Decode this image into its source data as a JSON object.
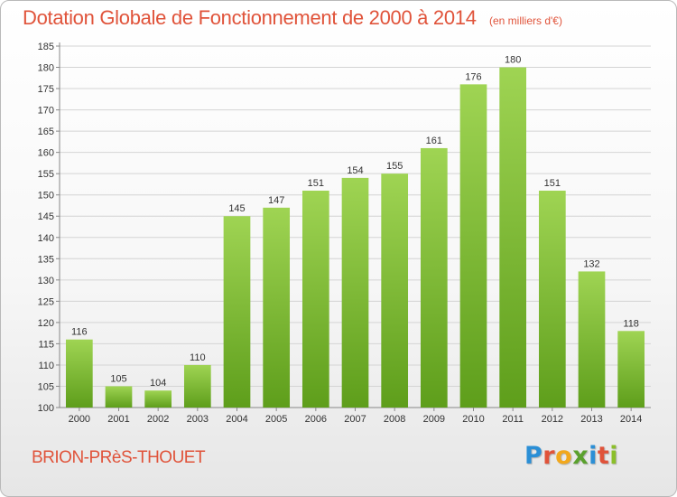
{
  "header": {
    "title": "Dotation Globale de Fonctionnement de 2000 à 2014",
    "unit": "(en milliers d'€)"
  },
  "footer": {
    "commune": "BRION-PRèS-THOUET",
    "logo_letters": [
      "P",
      "r",
      "o",
      "x",
      "i",
      "t",
      "i"
    ],
    "logo_colors": [
      "#2b8fd6",
      "#e0533a",
      "#f2a81d",
      "#5aa12d",
      "#2b8fd6",
      "#e0533a",
      "#8bbf2a"
    ]
  },
  "colors": {
    "bar_light": "#9fd453",
    "bar_dark": "#5e9e1b",
    "grid": "#d4d4d4",
    "axis": "#888888",
    "accent": "#e0533a"
  },
  "chart_data": {
    "type": "bar",
    "title": "Dotation Globale de Fonctionnement de 2000 à 2014",
    "subtitle": "(en milliers d'€)",
    "xlabel": "",
    "ylabel": "",
    "categories": [
      "2000",
      "2001",
      "2002",
      "2003",
      "2004",
      "2005",
      "2006",
      "2007",
      "2008",
      "2009",
      "2010",
      "2011",
      "2012",
      "2013",
      "2014"
    ],
    "values": [
      116,
      105,
      104,
      110,
      145,
      147,
      151,
      154,
      155,
      161,
      176,
      180,
      151,
      132,
      118
    ],
    "ylim": [
      100,
      185
    ],
    "ytick_step": 5,
    "grid": true,
    "legend": "none"
  }
}
